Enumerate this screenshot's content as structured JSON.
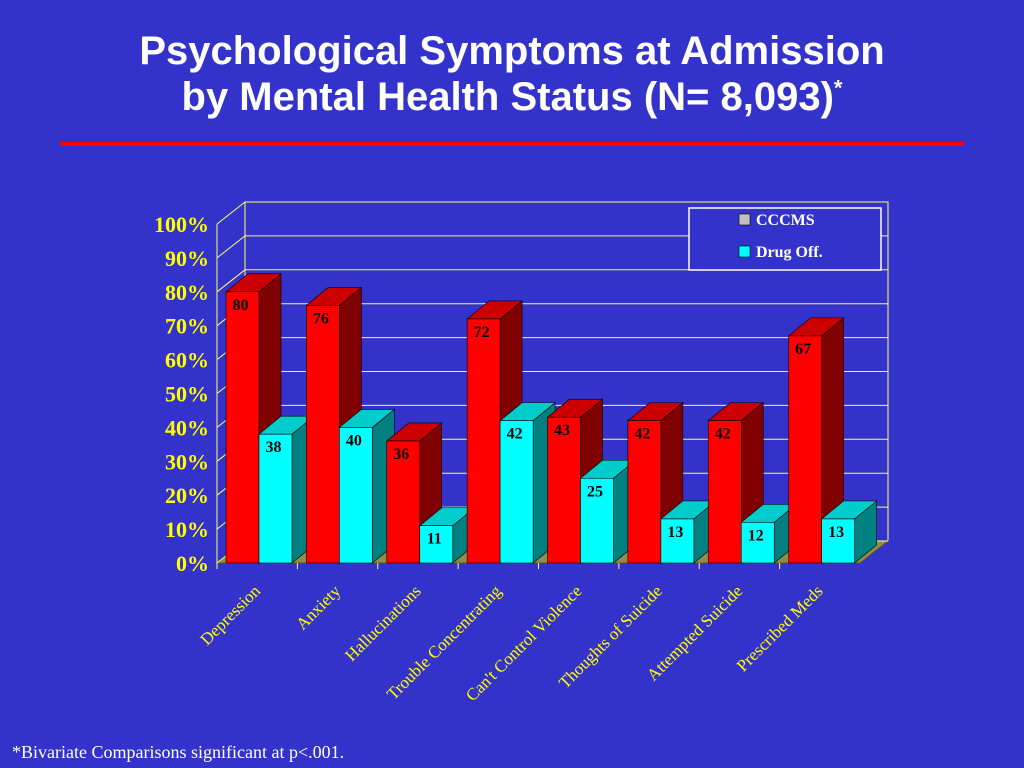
{
  "slide": {
    "title_line1": "Psychological Symptoms at Admission",
    "title_line2": "by Mental Health Status (N= 8,093)",
    "title_mark": "*",
    "footnote": "*Bivariate Comparisons significant at p<.001."
  },
  "colors": {
    "background": "#3333cc",
    "rule": "#ff0000",
    "axis_text": "#ffff00",
    "gridline": "#ffff66",
    "cccms": "#ff0000",
    "drug_off": "#00ffff"
  },
  "chart_data": {
    "type": "bar",
    "title": "",
    "xlabel": "",
    "ylabel": "",
    "ylim": [
      0,
      100
    ],
    "yticks": [
      "0%",
      "10%",
      "20%",
      "30%",
      "40%",
      "50%",
      "60%",
      "70%",
      "80%",
      "90%",
      "100%"
    ],
    "grid": true,
    "legend_position": "top-right",
    "style": "3d-clustered",
    "categories": [
      "Depression",
      "Anxiety",
      "Hallucinations",
      "Trouble Concentrating",
      "Can't Control Violence",
      "Thoughts of Suicide",
      "Attempted Suicide",
      "Prescribed Meds"
    ],
    "series": [
      {
        "name": "CCCMS",
        "values": [
          80,
          76,
          36,
          72,
          43,
          42,
          42,
          67
        ],
        "labels": [
          "80",
          "76",
          "36",
          "72",
          "43",
          "42",
          "42",
          "67"
        ]
      },
      {
        "name": "Drug Off.",
        "values": [
          38,
          40,
          11,
          42,
          25,
          13,
          12,
          13
        ],
        "labels": [
          "38",
          "40",
          "11",
          "42",
          "25",
          "13",
          "12",
          "13"
        ]
      }
    ]
  }
}
